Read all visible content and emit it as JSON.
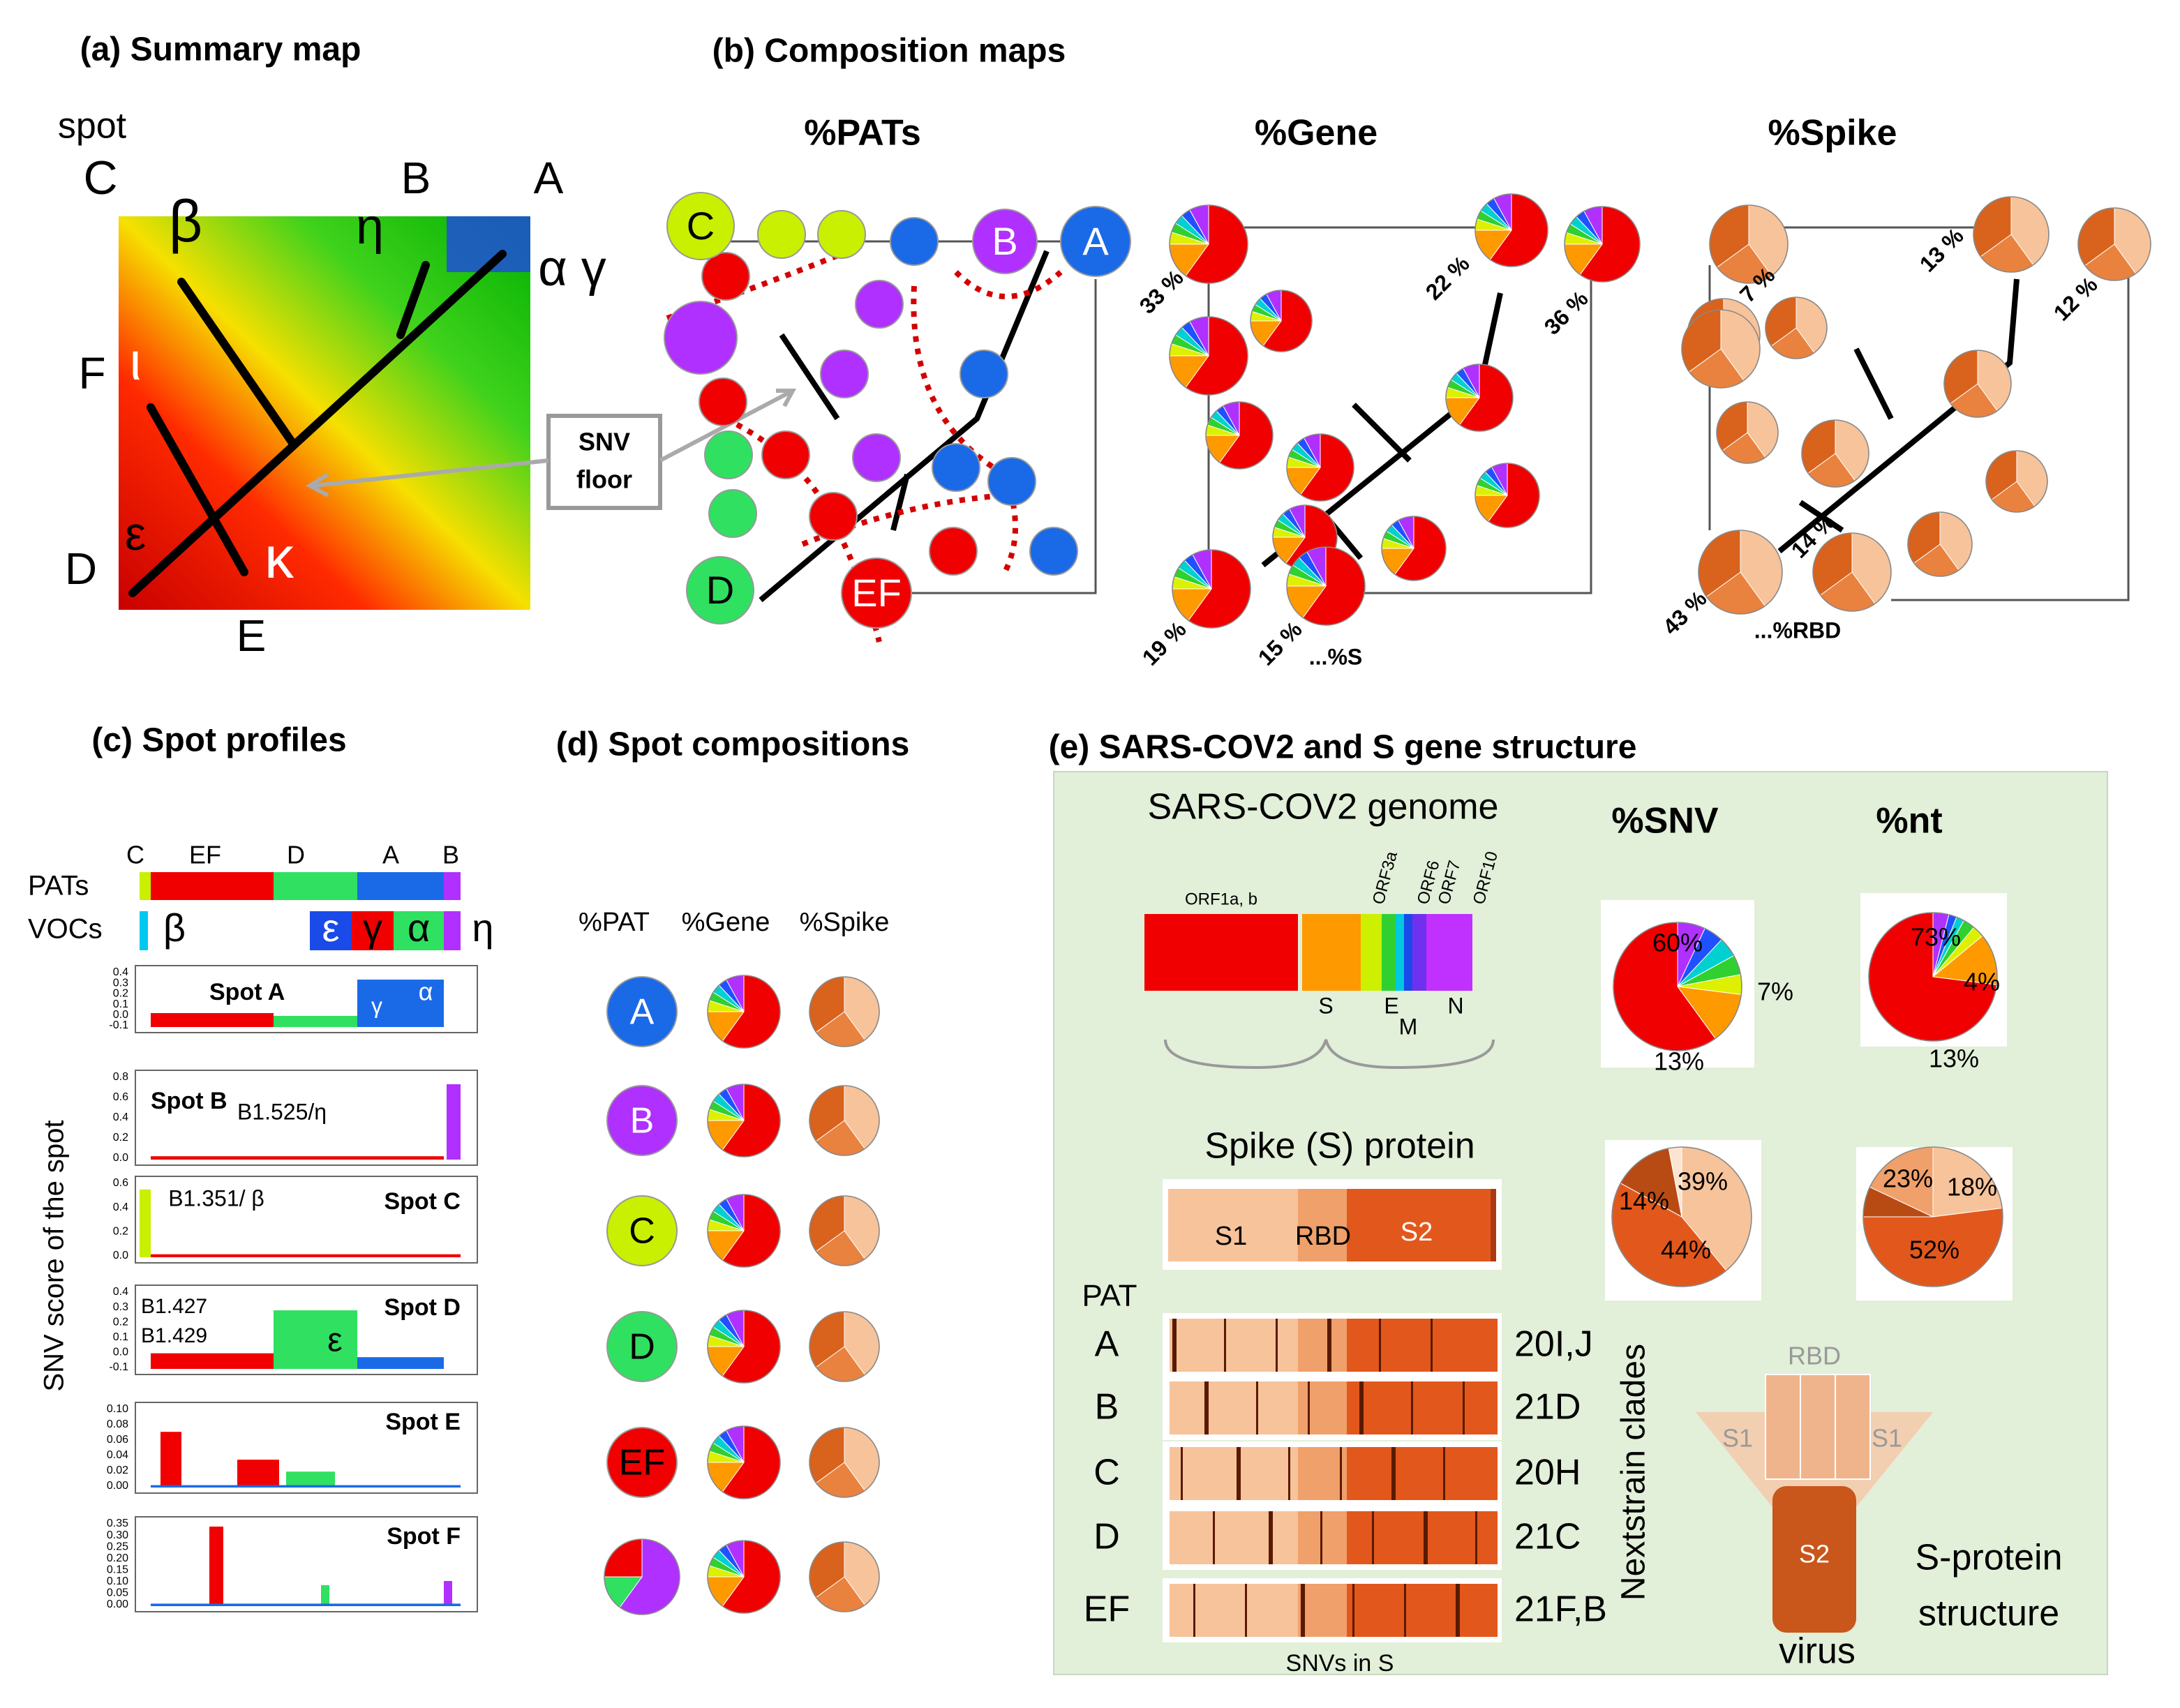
{
  "a": {
    "title": "(a) Summary map",
    "spot": "spot",
    "labels": [
      "C",
      "B",
      "A",
      "β",
      "η",
      "α γ",
      "F",
      "ι",
      "ε",
      "D",
      "κ",
      "E"
    ],
    "callout": [
      "SNV",
      "floor"
    ]
  },
  "b": {
    "title": "(b) Composition maps",
    "maps": [
      "%PATs",
      "%Gene",
      "%Spike"
    ],
    "pat_nodes": [
      "C",
      "B",
      "A",
      "D",
      "EF"
    ],
    "gene_labels": [
      "33 %",
      "22 %",
      "36 %",
      "19 %",
      "15 %",
      "...%S"
    ],
    "spike_labels": [
      "7 %",
      "13 %",
      "12 %",
      "14 %",
      "43 %",
      "...%RBD"
    ]
  },
  "c": {
    "title": "(c) Spot profiles",
    "pat_header": [
      "C",
      "EF",
      "D",
      "A",
      "B"
    ],
    "rows": [
      "PATs",
      "VOCs"
    ],
    "vocs": [
      "β",
      "ε",
      "γ",
      "α",
      "η"
    ],
    "y_label": "SNV score of the spot",
    "spots": [
      {
        "name": "Spot A",
        "ticks": [
          "0.4",
          "0.3",
          "0.2",
          "0.1",
          "0.0",
          "-0.1"
        ],
        "notes": [
          "γ",
          "α"
        ]
      },
      {
        "name": "Spot B",
        "ticks": [
          "0.8",
          "0.6",
          "0.4",
          "0.2",
          "0.0"
        ],
        "notes": [
          "B1.525/η"
        ]
      },
      {
        "name": "Spot C",
        "ticks": [
          "0.6",
          "0.4",
          "0.2",
          "0.0"
        ],
        "notes": [
          "B1.351/ β"
        ]
      },
      {
        "name": "Spot D",
        "ticks": [
          "0.4",
          "0.3",
          "0.2",
          "0.1",
          "0.0",
          "-0.1"
        ],
        "notes": [
          "B1.427",
          "B1.429",
          "ε"
        ]
      },
      {
        "name": "Spot E",
        "ticks": [
          "0.10",
          "0.08",
          "0.06",
          "0.04",
          "0.02",
          "0.00"
        ]
      },
      {
        "name": "Spot F",
        "ticks": [
          "0.35",
          "0.30",
          "0.25",
          "0.20",
          "0.15",
          "0.10",
          "0.05",
          "0.00"
        ]
      }
    ]
  },
  "d": {
    "title": "(d) Spot compositions",
    "columns": [
      "%PAT",
      "%Gene",
      "%Spike"
    ],
    "rows": [
      "A",
      "B",
      "C",
      "D",
      "EF"
    ]
  },
  "e": {
    "title": "(e) SARS-COV2 and S gene structure",
    "genome_title": "SARS-COV2 genome",
    "genes": [
      "ORF1a, b",
      "ORF3a",
      "ORF6",
      "ORF7",
      "ORF10"
    ],
    "genes_below": [
      "S",
      "E",
      "M",
      "N"
    ],
    "pie_titles": [
      "%SNV",
      "%nt"
    ],
    "pie_labels": [
      [
        "60%",
        "7%",
        "13%"
      ],
      [
        "73%",
        "4%",
        "13%"
      ],
      [
        "39%",
        "14%",
        "44%"
      ],
      [
        "18%",
        "23%",
        "52%"
      ]
    ],
    "spike_title": "Spike (S) protein",
    "spike_parts": [
      "S1",
      "RBD",
      "S2"
    ],
    "pat_header": "PAT",
    "pats": [
      {
        "pat": "A",
        "clade": "20I,J"
      },
      {
        "pat": "B",
        "clade": "21D"
      },
      {
        "pat": "C",
        "clade": "20H"
      },
      {
        "pat": "D",
        "clade": "21C"
      },
      {
        "pat": "EF",
        "clade": "21F,B"
      }
    ],
    "clade_title": "Nextstrain clades",
    "snv_axis": "SNVs in S",
    "structure": [
      "RBD",
      "S1",
      "S1",
      "S2",
      "virus",
      "S-protein",
      "structure"
    ]
  }
}
